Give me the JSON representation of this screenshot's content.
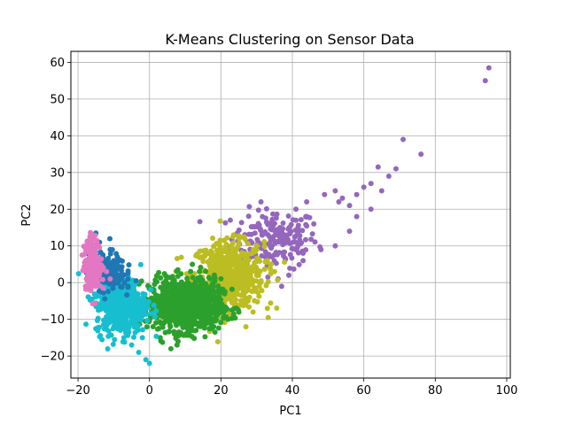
{
  "chart_data": {
    "type": "scatter",
    "title": "K-Means Clustering on Sensor Data",
    "xlabel": "PC1",
    "ylabel": "PC2",
    "xlim": [
      -22,
      101
    ],
    "ylim": [
      -26,
      63
    ],
    "xticks": [
      -20,
      0,
      20,
      40,
      60,
      80,
      100
    ],
    "yticks": [
      -20,
      -10,
      0,
      10,
      20,
      30,
      40,
      50,
      60
    ],
    "grid": true,
    "legend": "none",
    "clusters": [
      {
        "color": "#9467bd",
        "center": [
          35,
          12
        ],
        "spread": [
          6,
          4
        ],
        "count": 180,
        "points": [
          [
            95,
            58.5
          ],
          [
            94,
            55
          ],
          [
            71,
            39
          ],
          [
            76,
            35
          ],
          [
            64,
            31.5
          ],
          [
            67,
            29
          ],
          [
            69,
            31
          ],
          [
            62,
            27
          ],
          [
            65,
            25
          ],
          [
            60,
            26
          ],
          [
            58,
            24
          ],
          [
            54,
            23
          ],
          [
            52,
            25
          ],
          [
            49,
            24
          ],
          [
            56,
            21
          ],
          [
            53,
            22
          ],
          [
            62,
            20
          ],
          [
            58,
            18
          ],
          [
            44,
            22
          ],
          [
            41,
            20
          ],
          [
            56,
            14
          ],
          [
            48,
            9
          ],
          [
            43,
            6
          ],
          [
            39,
            2
          ],
          [
            36,
            1
          ],
          [
            37,
            -1
          ],
          [
            43,
            8
          ],
          [
            52,
            10
          ],
          [
            46,
            16
          ],
          [
            41,
            17
          ]
        ]
      },
      {
        "color": "#bcbd22",
        "center": [
          22,
          2
        ],
        "spread": [
          5,
          4.5
        ],
        "count": 600,
        "points": [
          [
            25,
            12
          ],
          [
            30,
            10
          ],
          [
            33,
            6
          ],
          [
            35,
            3
          ],
          [
            28,
            -4
          ],
          [
            24,
            -6
          ],
          [
            20,
            -7
          ],
          [
            29,
            -8
          ],
          [
            27,
            -12
          ],
          [
            33,
            -7
          ]
        ]
      },
      {
        "color": "#2ca02c",
        "center": [
          10,
          -6
        ],
        "spread": [
          5,
          3.5
        ],
        "count": 900,
        "points": [
          [
            1,
            -12
          ],
          [
            3,
            -15
          ],
          [
            7,
            -14
          ],
          [
            13,
            -13
          ],
          [
            18,
            -12
          ],
          [
            22,
            -10
          ],
          [
            25,
            -8
          ],
          [
            6,
            -18
          ],
          [
            8,
            -16
          ],
          [
            12,
            5
          ],
          [
            14,
            3
          ],
          [
            4,
            -4
          ],
          [
            17,
            -9
          ]
        ]
      },
      {
        "color": "#17becf",
        "center": [
          -8,
          -6
        ],
        "spread": [
          3.5,
          4
        ],
        "count": 500,
        "points": [
          [
            -1,
            -21
          ],
          [
            0,
            -22
          ],
          [
            -3,
            -19
          ],
          [
            -5,
            -17
          ],
          [
            -2,
            -15
          ],
          [
            -11,
            -4
          ],
          [
            -14,
            0
          ],
          [
            -10,
            -12
          ],
          [
            -6,
            -13
          ],
          [
            -3,
            -9
          ],
          [
            -1,
            -6
          ]
        ]
      },
      {
        "color": "#1f77b4",
        "center": [
          -12,
          3
        ],
        "spread": [
          2.5,
          2.5
        ],
        "count": 180,
        "points": [
          [
            -15,
            13.5
          ],
          [
            -14,
            11
          ],
          [
            -11,
            9
          ],
          [
            -9,
            7
          ],
          [
            -8,
            6
          ],
          [
            -6,
            2.5
          ],
          [
            -6,
            -1
          ],
          [
            -7,
            0
          ]
        ]
      },
      {
        "color": "#e377c2",
        "center": [
          -16,
          5
        ],
        "spread": [
          1.2,
          3.5
        ],
        "count": 200,
        "points": [
          [
            -17,
            11.5
          ],
          [
            -16,
            10
          ],
          [
            -15,
            8
          ],
          [
            -17,
            3
          ],
          [
            -16,
            0
          ],
          [
            -15,
            -1
          ],
          [
            -13,
            -1.5
          ],
          [
            -11,
            1
          ],
          [
            -12,
            3
          ]
        ]
      }
    ]
  }
}
